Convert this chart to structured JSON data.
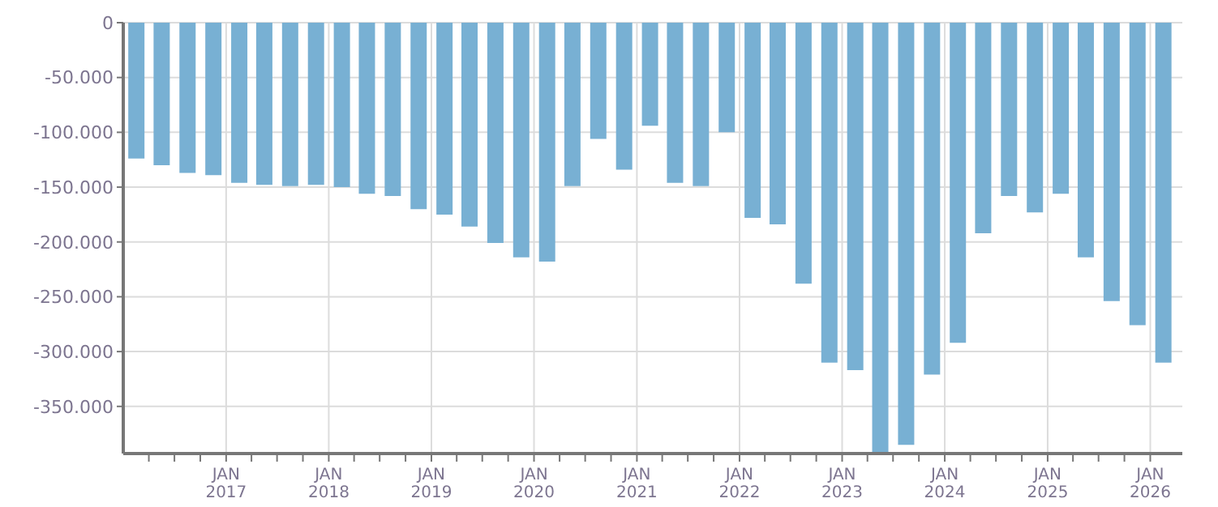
{
  "chart_data": {
    "type": "bar",
    "color": "#78b0d3",
    "x": [
      "2016-02-15",
      "2016-05-15",
      "2016-08-15",
      "2016-11-15",
      "2017-02-15",
      "2017-05-15",
      "2017-08-15",
      "2017-11-15",
      "2018-02-15",
      "2018-05-15",
      "2018-08-15",
      "2018-11-15",
      "2019-02-15",
      "2019-05-15",
      "2019-08-15",
      "2019-11-15",
      "2020-02-15",
      "2020-05-15",
      "2020-08-15",
      "2020-11-15",
      "2021-02-15",
      "2021-05-15",
      "2021-08-15",
      "2021-11-15",
      "2022-02-15",
      "2022-05-15",
      "2022-08-15",
      "2022-11-15",
      "2023-02-15",
      "2023-05-15",
      "2023-08-15",
      "2023-11-15",
      "2024-02-15",
      "2024-05-15",
      "2024-08-15",
      "2024-11-15",
      "2025-02-15",
      "2025-05-15",
      "2025-08-15",
      "2025-11-15",
      "2026-02-15"
    ],
    "values": [
      -124000,
      -130000,
      -137000,
      -139000,
      -146000,
      -148000,
      -149000,
      -148000,
      -150000,
      -156000,
      -158000,
      -170000,
      -175000,
      -186000,
      -201000,
      -214000,
      -218000,
      -149000,
      -106000,
      -134000,
      -94000,
      -146000,
      -149000,
      -100000,
      -178000,
      -184000,
      -238000,
      -310000,
      -317000,
      -392000,
      -385000,
      -321000,
      -292000,
      -192000,
      -158000,
      -173000,
      -156000,
      -214000,
      -254000,
      -276000,
      -310000
    ],
    "xlim": [
      "2016-01-01",
      "2026-04-25"
    ],
    "xticks": [
      {
        "value": "2016-04-01",
        "label": null
      },
      {
        "value": "2016-07-01",
        "label": null
      },
      {
        "value": "2016-10-01",
        "label": null
      },
      {
        "value": "2017-01-01",
        "label": "JAN\n2017"
      },
      {
        "value": "2017-04-01",
        "label": null
      },
      {
        "value": "2017-07-01",
        "label": null
      },
      {
        "value": "2017-10-01",
        "label": null
      },
      {
        "value": "2018-01-01",
        "label": "JAN\n2018"
      },
      {
        "value": "2018-04-01",
        "label": null
      },
      {
        "value": "2018-07-01",
        "label": null
      },
      {
        "value": "2018-10-01",
        "label": null
      },
      {
        "value": "2019-01-01",
        "label": "JAN\n2019"
      },
      {
        "value": "2019-04-01",
        "label": null
      },
      {
        "value": "2019-07-01",
        "label": null
      },
      {
        "value": "2019-10-01",
        "label": null
      },
      {
        "value": "2020-01-01",
        "label": "JAN\n2020"
      },
      {
        "value": "2020-04-01",
        "label": null
      },
      {
        "value": "2020-07-01",
        "label": null
      },
      {
        "value": "2020-10-01",
        "label": null
      },
      {
        "value": "2021-01-01",
        "label": "JAN\n2021"
      },
      {
        "value": "2021-04-01",
        "label": null
      },
      {
        "value": "2021-07-01",
        "label": null
      },
      {
        "value": "2021-10-01",
        "label": null
      },
      {
        "value": "2022-01-01",
        "label": "JAN\n2022"
      },
      {
        "value": "2022-04-01",
        "label": null
      },
      {
        "value": "2022-07-01",
        "label": null
      },
      {
        "value": "2022-10-01",
        "label": null
      },
      {
        "value": "2023-01-01",
        "label": "JAN\n2023"
      },
      {
        "value": "2023-04-01",
        "label": null
      },
      {
        "value": "2023-07-01",
        "label": null
      },
      {
        "value": "2023-10-01",
        "label": null
      },
      {
        "value": "2024-01-01",
        "label": "JAN\n2024"
      },
      {
        "value": "2024-04-01",
        "label": null
      },
      {
        "value": "2024-07-01",
        "label": null
      },
      {
        "value": "2024-10-01",
        "label": null
      },
      {
        "value": "2025-01-01",
        "label": "JAN\n2025"
      },
      {
        "value": "2025-04-01",
        "label": null
      },
      {
        "value": "2025-07-01",
        "label": null
      },
      {
        "value": "2025-10-01",
        "label": null
      },
      {
        "value": "2026-01-01",
        "label": "JAN\n2026"
      }
    ],
    "ylim": [
      -393000,
      0
    ],
    "yticks": [
      {
        "value": -350000,
        "label": "-350.000"
      },
      {
        "value": -300000,
        "label": "-300.000"
      },
      {
        "value": -250000,
        "label": "-250.000"
      },
      {
        "value": -200000,
        "label": "-200.000"
      },
      {
        "value": -150000,
        "label": "-150.000"
      },
      {
        "value": -100000,
        "label": "-100.000"
      },
      {
        "value": -50000,
        "label": "-50.000"
      },
      0
    ],
    "grid": true
  }
}
